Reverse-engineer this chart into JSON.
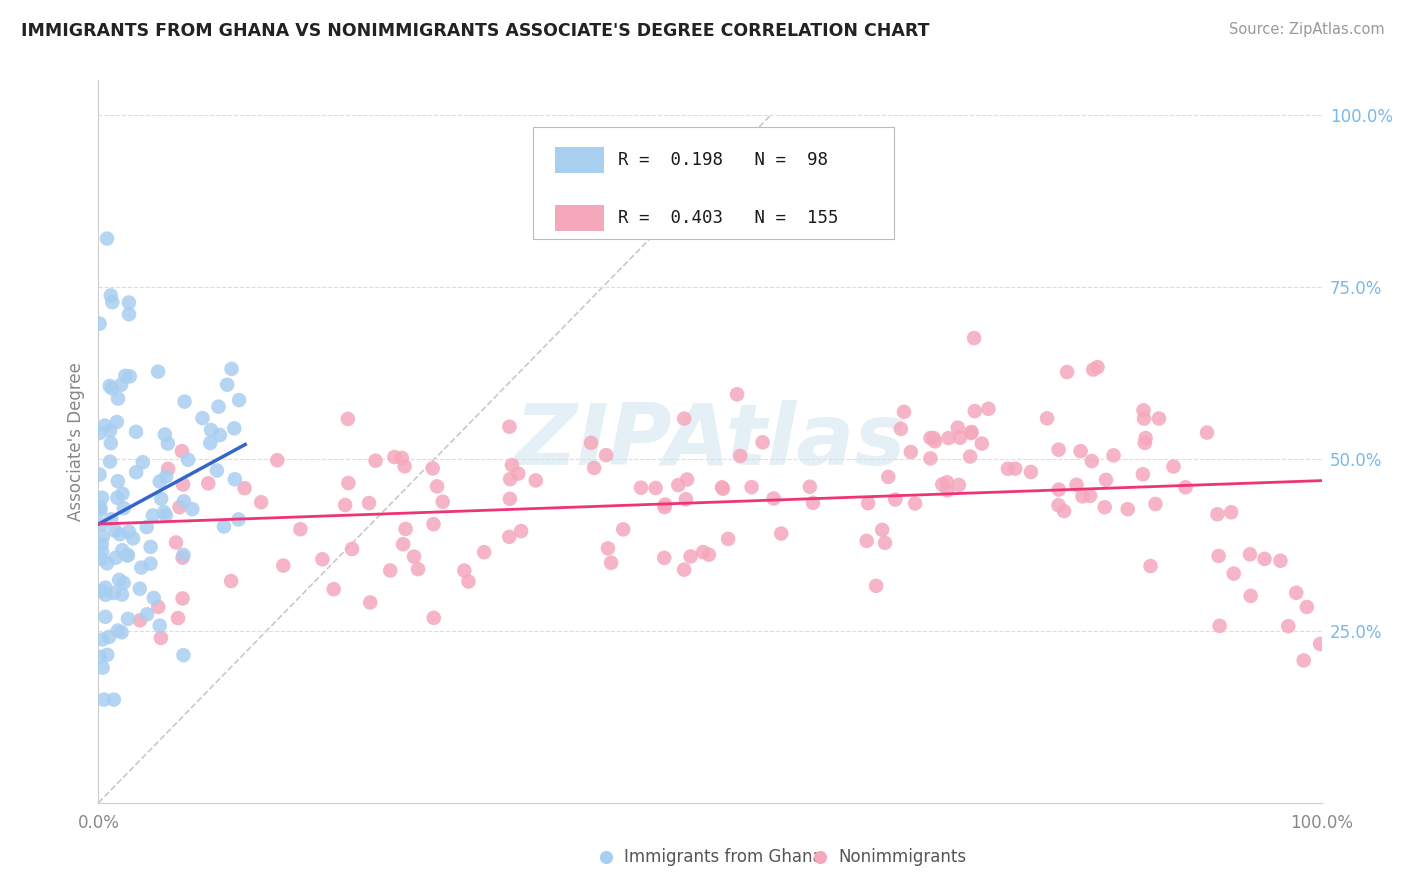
{
  "title": "IMMIGRANTS FROM GHANA VS NONIMMIGRANTS ASSOCIATE'S DEGREE CORRELATION CHART",
  "source": "Source: ZipAtlas.com",
  "ylabel": "Associate's Degree",
  "ylabel_right_labels": [
    "25.0%",
    "50.0%",
    "75.0%",
    "100.0%"
  ],
  "ylabel_right_positions": [
    0.25,
    0.5,
    0.75,
    1.0
  ],
  "legend_label1": "Immigrants from Ghana",
  "legend_label2": "Nonimmigrants",
  "R1": 0.198,
  "N1": 98,
  "R2": 0.403,
  "N2": 155,
  "color1": "#a8cef0",
  "color2": "#f5a8bc",
  "line_color1": "#3366cc",
  "line_color2": "#ee3377",
  "ref_line_color": "#bbbbbb",
  "background_color": "#ffffff",
  "grid_color": "#dddddd",
  "axis_color": "#cccccc",
  "tick_color": "#888888",
  "right_tick_color": "#7ab8e8",
  "title_color": "#222222",
  "source_color": "#999999",
  "watermark_color": "#d0e4f0",
  "xlim": [
    0.0,
    1.0
  ],
  "ylim": [
    0.0,
    1.05
  ]
}
